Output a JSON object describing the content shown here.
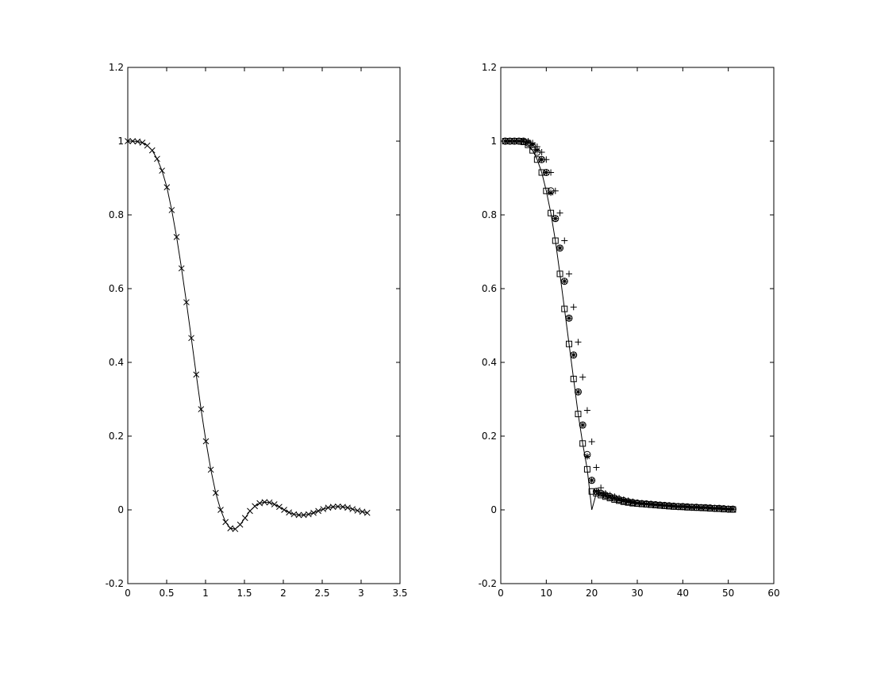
{
  "chart_data": [
    {
      "type": "line",
      "x": [
        0,
        0.063,
        0.126,
        0.188,
        0.251,
        0.314,
        0.377,
        0.44,
        0.503,
        0.565,
        0.628,
        0.691,
        0.754,
        0.817,
        0.88,
        0.942,
        1.005,
        1.068,
        1.131,
        1.194,
        1.257,
        1.319,
        1.382,
        1.445,
        1.508,
        1.571,
        1.634,
        1.696,
        1.759,
        1.822,
        1.885,
        1.948,
        2.011,
        2.073,
        2.136,
        2.199,
        2.262,
        2.325,
        2.388,
        2.45,
        2.513,
        2.576,
        2.639,
        2.702,
        2.765,
        2.827,
        2.89,
        2.953,
        3.016,
        3.079
      ],
      "series": [
        {
          "color": "#000000",
          "marker": "x",
          "linestyle": "solid",
          "values": [
            1,
            1,
            0.999,
            0.996,
            0.988,
            0.975,
            0.952,
            0.92,
            0.875,
            0.813,
            0.74,
            0.655,
            0.563,
            0.466,
            0.367,
            0.273,
            0.186,
            0.109,
            0.046,
            0,
            -0.033,
            -0.05,
            -0.052,
            -0.04,
            -0.022,
            -0.003,
            0.01,
            0.018,
            0.021,
            0.02,
            0.015,
            0.008,
            0,
            -0.007,
            -0.012,
            -0.014,
            -0.014,
            -0.012,
            -0.008,
            -0.003,
            0.002,
            0.006,
            0.008,
            0.009,
            0.008,
            0.006,
            0.002,
            -0.002,
            -0.005,
            -0.008
          ]
        }
      ],
      "xlim": [
        0,
        3.5
      ],
      "xticks": [
        0,
        0.5,
        1,
        1.5,
        2,
        2.5,
        3,
        3.5
      ],
      "ylim": [
        -0.2,
        1.2
      ],
      "yticks": [
        -0.2,
        0,
        0.2,
        0.4,
        0.6,
        0.8,
        1,
        1.2
      ]
    },
    {
      "type": "line",
      "x": [
        1,
        2,
        3,
        4,
        5,
        6,
        7,
        8,
        9,
        10,
        11,
        12,
        13,
        14,
        15,
        16,
        17,
        18,
        19,
        20,
        21,
        22,
        23,
        24,
        25,
        26,
        27,
        28,
        29,
        30,
        31,
        32,
        33,
        34,
        35,
        36,
        37,
        38,
        39,
        40,
        41,
        42,
        43,
        44,
        45,
        46,
        47,
        48,
        49,
        50,
        51
      ],
      "series": [
        {
          "color": "#000000",
          "marker": "none",
          "linestyle": "solid",
          "values": [
            1,
            1,
            1,
            1,
            0.998,
            0.99,
            0.975,
            0.95,
            0.915,
            0.865,
            0.805,
            0.73,
            0.64,
            0.545,
            0.45,
            0.355,
            0.26,
            0.18,
            0.11,
            0,
            0.045,
            0.04,
            0.036,
            0.032,
            0.028,
            0.025,
            0.022,
            0.02,
            0.018,
            0.017,
            0.016,
            0.015,
            0.014,
            0.013,
            0.012,
            0.011,
            0.01,
            0.009,
            0.009,
            0.008,
            0.007,
            0.007,
            0.006,
            0.006,
            0.005,
            0.004,
            0.004,
            0.003,
            0.002,
            0.002,
            0.001
          ]
        },
        {
          "color": "#000000",
          "marker": "square",
          "linestyle": "none",
          "values": [
            1,
            1,
            1,
            1,
            0.998,
            0.99,
            0.975,
            0.95,
            0.915,
            0.865,
            0.805,
            0.73,
            0.64,
            0.545,
            0.45,
            0.355,
            0.26,
            0.18,
            0.11,
            0.05,
            0.045,
            0.04,
            0.036,
            0.032,
            0.028,
            0.025,
            0.022,
            0.02,
            0.018,
            0.017,
            0.016,
            0.015,
            0.014,
            0.013,
            0.012,
            0.011,
            0.01,
            0.009,
            0.009,
            0.008,
            0.007,
            0.007,
            0.006,
            0.006,
            0.005,
            0.004,
            0.004,
            0.003,
            0.002,
            0.002,
            0.001
          ]
        },
        {
          "color": "#000000",
          "marker": "circle",
          "linestyle": "none",
          "values": [
            1,
            1,
            1,
            1,
            1,
            0.995,
            0.985,
            0.97,
            0.95,
            0.915,
            0.865,
            0.79,
            0.71,
            0.62,
            0.52,
            0.42,
            0.32,
            0.23,
            0.15,
            0.08,
            0.05,
            0.045,
            0.04,
            0.036,
            0.032,
            0.028,
            0.025,
            0.022,
            0.02,
            0.018,
            0.017,
            0.016,
            0.015,
            0.014,
            0.013,
            0.012,
            0.011,
            0.01,
            0.009,
            0.009,
            0.008,
            0.007,
            0.007,
            0.006,
            0.006,
            0.005,
            0.004,
            0.004,
            0.003,
            0.002,
            0.002
          ]
        },
        {
          "color": "#000000",
          "marker": "star",
          "linestyle": "none",
          "values": [
            1,
            1,
            1,
            1,
            1,
            0.997,
            0.99,
            0.975,
            0.95,
            0.915,
            0.86,
            0.79,
            0.71,
            0.62,
            0.52,
            0.42,
            0.32,
            0.23,
            0.145,
            0.08,
            0.05,
            0.045,
            0.04,
            0.036,
            0.032,
            0.028,
            0.025,
            0.022,
            0.02,
            0.018,
            0.017,
            0.016,
            0.015,
            0.014,
            0.013,
            0.012,
            0.011,
            0.01,
            0.009,
            0.009,
            0.008,
            0.007,
            0.007,
            0.006,
            0.006,
            0.005,
            0.004,
            0.004,
            0.003,
            0.002,
            0.002
          ]
        },
        {
          "color": "#000000",
          "marker": "plus",
          "linestyle": "none",
          "values": [
            1,
            1,
            1,
            1,
            1,
            1,
            0.995,
            0.985,
            0.97,
            0.95,
            0.915,
            0.865,
            0.805,
            0.73,
            0.64,
            0.55,
            0.455,
            0.36,
            0.27,
            0.185,
            0.115,
            0.06,
            0.045,
            0.04,
            0.036,
            0.032,
            0.028,
            0.025,
            0.022,
            0.02,
            0.018,
            0.017,
            0.016,
            0.015,
            0.014,
            0.013,
            0.012,
            0.011,
            0.01,
            0.009,
            0.009,
            0.008,
            0.007,
            0.007,
            0.006,
            0.006,
            0.005,
            0.004,
            0.004,
            0.003,
            0.002
          ]
        }
      ],
      "xlim": [
        0,
        60
      ],
      "xticks": [
        0,
        10,
        20,
        30,
        40,
        50,
        60
      ],
      "ylim": [
        -0.2,
        1.2
      ],
      "yticks": [
        -0.2,
        0,
        0.2,
        0.4,
        0.6,
        0.8,
        1,
        1.2
      ]
    }
  ]
}
